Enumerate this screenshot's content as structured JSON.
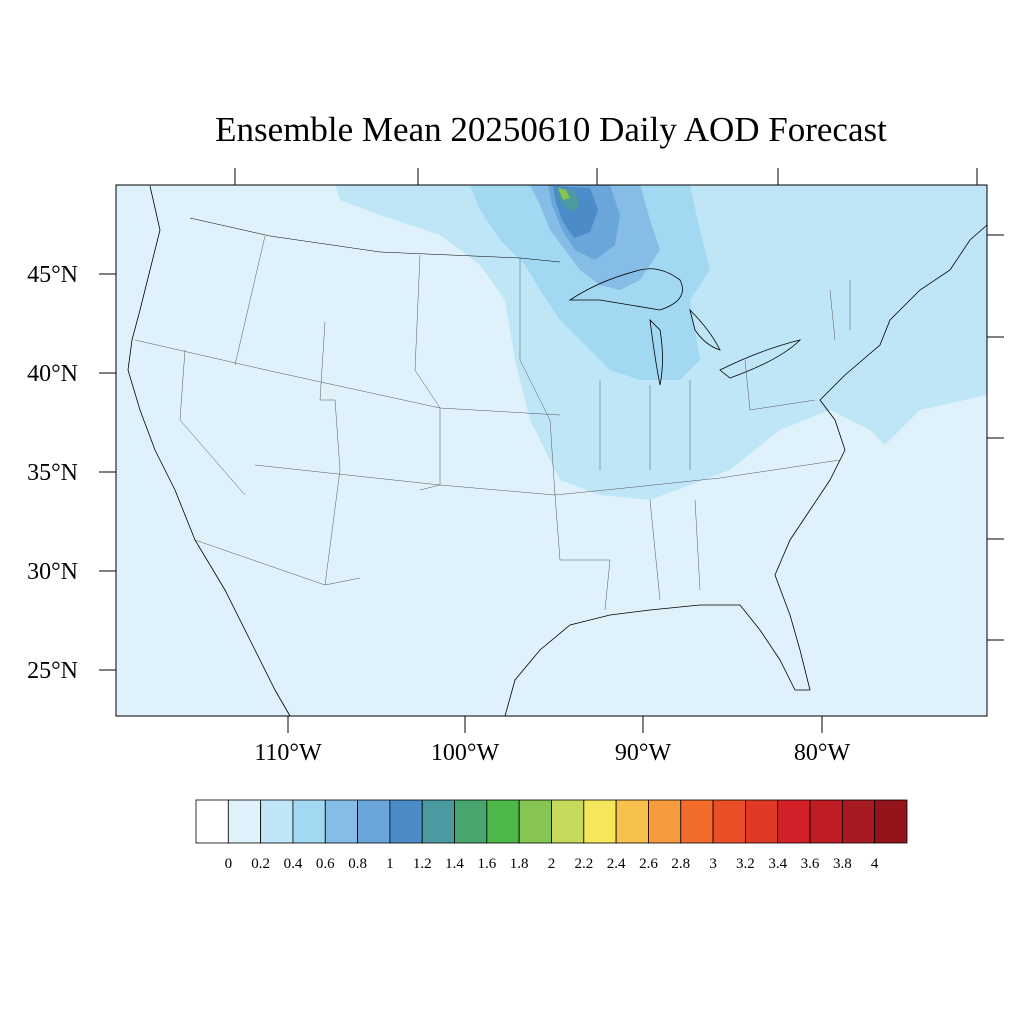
{
  "title": "Ensemble Mean 20250610 Daily AOD Forecast",
  "lat_labels": [
    "45°N",
    "40°N",
    "35°N",
    "30°N",
    "25°N"
  ],
  "lon_labels": [
    "110°W",
    "100°W",
    "90°W",
    "80°W"
  ],
  "colorbar": {
    "labels": [
      "0",
      "0.2",
      "0.4",
      "0.6",
      "0.8",
      "1",
      "1.2",
      "1.4",
      "1.6",
      "1.8",
      "2",
      "2.2",
      "2.4",
      "2.6",
      "2.8",
      "3",
      "3.2",
      "3.4",
      "3.6",
      "3.8",
      "4"
    ],
    "colors": [
      "#ffffff",
      "#dff2fb",
      "#bfe6f7",
      "#a3d8f3",
      "#85bde6",
      "#6aa6da",
      "#4b8bc8",
      "#4a9aa0",
      "#47a66e",
      "#4cb848",
      "#86c552",
      "#c6d95a",
      "#f5e65b",
      "#f8c04d",
      "#f79b3f",
      "#f26b2b",
      "#ea5028",
      "#e03a26",
      "#d42028",
      "#bf1c24",
      "#a81a21",
      "#931519"
    ]
  },
  "colors": {
    "background_aod": "#dff2fb",
    "land_line": "#000000"
  }
}
